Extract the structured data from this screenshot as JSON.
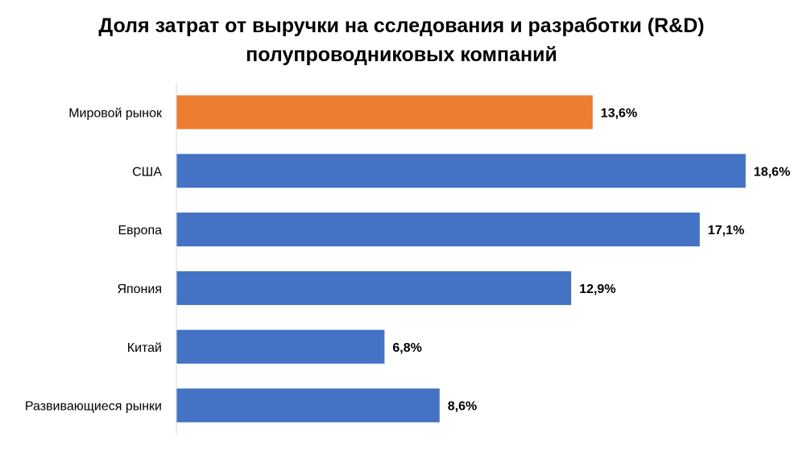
{
  "chart_data": {
    "type": "bar",
    "orientation": "horizontal",
    "title_line1": "Доля затрат от выручки на сследования и разработки (R&D)",
    "title_line2": "полупроводниковых компаний",
    "categories": [
      "Мировой рынок",
      "США",
      "Европа",
      "Япония",
      "Китай",
      "Развивающиеся рынки"
    ],
    "values": [
      13.6,
      18.6,
      17.1,
      12.9,
      6.8,
      8.6
    ],
    "data_labels": [
      "13,6%",
      "18,6%",
      "17,1%",
      "12,9%",
      "6,8%",
      "8,6%"
    ],
    "colors": [
      "#ED7D31",
      "#4472C4",
      "#4472C4",
      "#4472C4",
      "#4472C4",
      "#4472C4"
    ],
    "unit": "%",
    "xlim": [
      0,
      20
    ],
    "grid": false,
    "legend": "none",
    "axis_color": "#D9D9D9"
  }
}
